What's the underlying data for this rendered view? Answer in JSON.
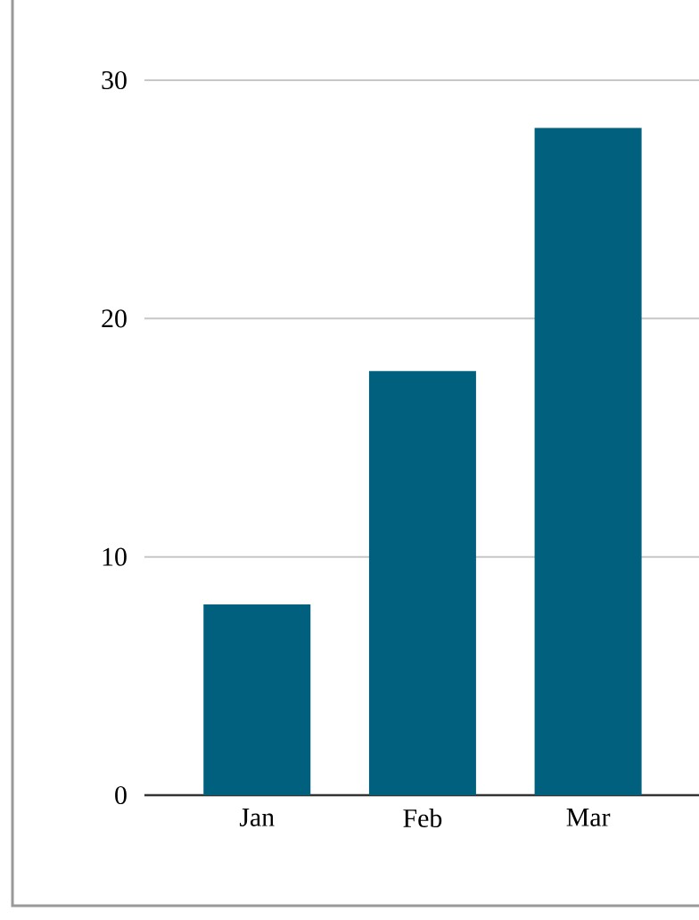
{
  "chart_data": {
    "type": "bar",
    "categories": [
      "Jan",
      "Feb",
      "Mar"
    ],
    "values": [
      8,
      17.8,
      28
    ],
    "color": "#02607f",
    "ylim": [
      0,
      30
    ],
    "yticks": [
      0,
      10,
      20,
      30
    ],
    "grid": "y"
  }
}
